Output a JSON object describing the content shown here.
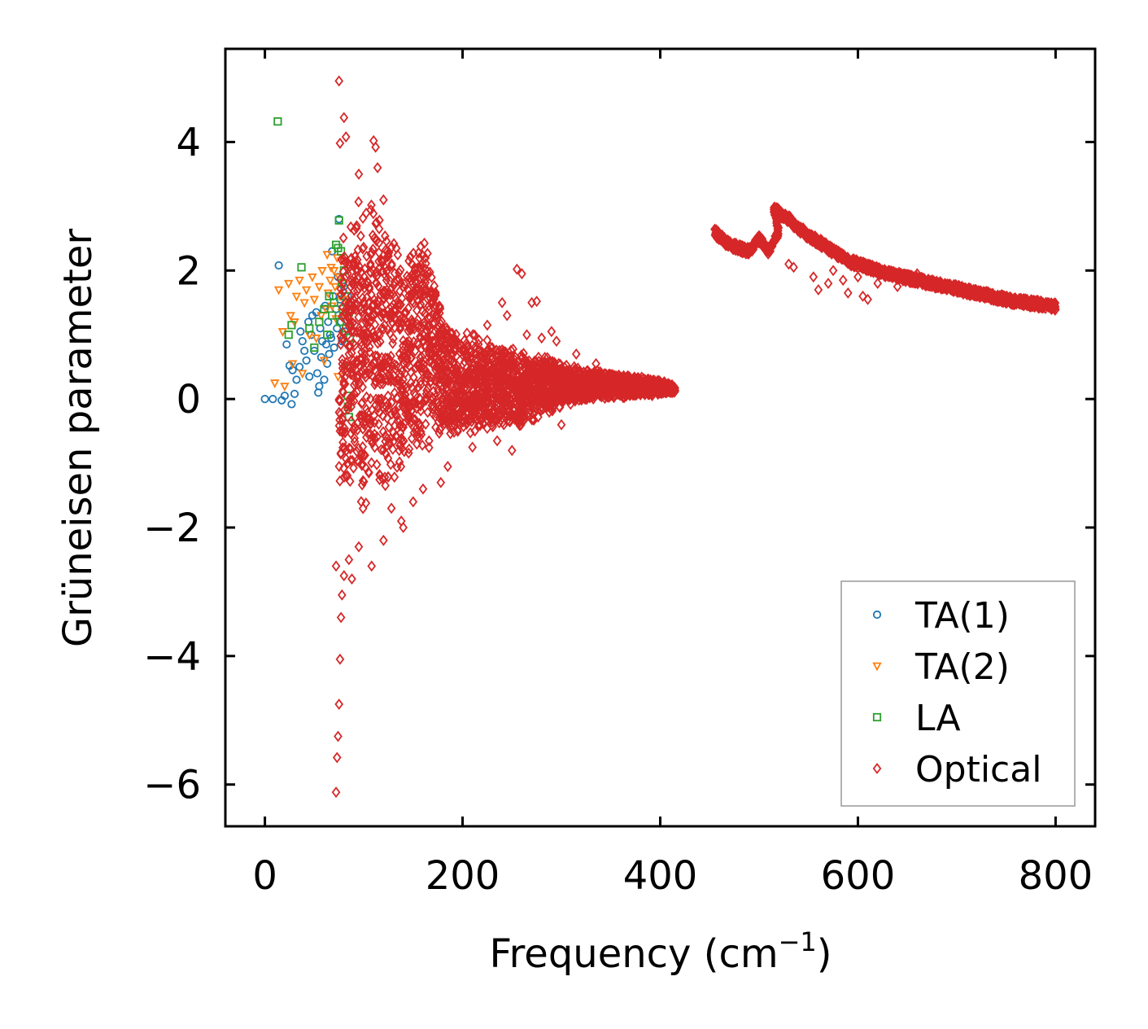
{
  "chart_data": {
    "type": "scatter",
    "title": "",
    "xlabel": "Frequency (cm",
    "xlabel_sup": "−1",
    "xlabel_close": ")",
    "ylabel": "Grüneisen parameter",
    "xlim": [
      -40,
      840
    ],
    "ylim": [
      -6.65,
      5.45
    ],
    "xticks": [
      0,
      200,
      400,
      600,
      800
    ],
    "xtick_labels": [
      "0",
      "200",
      "400",
      "600",
      "800"
    ],
    "yticks": [
      -6,
      -4,
      -2,
      0,
      2,
      4
    ],
    "ytick_labels": [
      "−6",
      "−4",
      "−2",
      "0",
      "2",
      "4"
    ],
    "grid": false,
    "legend_position": "lower-right",
    "series": [
      {
        "name": "TA(1)",
        "marker": "circle",
        "color": "#1f77b4",
        "points": [
          [
            0,
            0
          ],
          [
            8,
            0
          ],
          [
            14,
            2.08
          ],
          [
            17,
            -0.02
          ],
          [
            20,
            0.05
          ],
          [
            22,
            0.85
          ],
          [
            25,
            0.52
          ],
          [
            27,
            -0.08
          ],
          [
            28,
            0.45
          ],
          [
            30,
            0.08
          ],
          [
            32,
            0.3
          ],
          [
            35,
            0.5
          ],
          [
            36,
            1.05
          ],
          [
            38,
            0.9
          ],
          [
            40,
            0.75
          ],
          [
            42,
            0.6
          ],
          [
            44,
            1.2
          ],
          [
            45,
            0.35
          ],
          [
            47,
            1.0
          ],
          [
            48,
            1.3
          ],
          [
            50,
            0.75
          ],
          [
            52,
            1.35
          ],
          [
            53,
            0.4
          ],
          [
            54,
            0.1
          ],
          [
            55,
            0.2
          ],
          [
            56,
            1.1
          ],
          [
            57,
            0.65
          ],
          [
            58,
            0.9
          ],
          [
            60,
            0.3
          ],
          [
            61,
            1.45
          ],
          [
            62,
            0.85
          ],
          [
            63,
            0.55
          ],
          [
            64,
            1.2
          ],
          [
            65,
            0.7
          ],
          [
            66,
            1.0
          ],
          [
            67,
            0.95
          ],
          [
            68,
            2.3
          ],
          [
            69,
            1.6
          ],
          [
            70,
            0.8
          ],
          [
            72,
            1.4
          ],
          [
            73,
            1.1
          ],
          [
            74,
            1.9
          ],
          [
            75,
            2.8
          ],
          [
            76,
            1.55
          ],
          [
            77,
            1.2
          ],
          [
            78,
            0.9
          ],
          [
            79,
            1.3
          ],
          [
            80,
            1.75
          ],
          [
            81,
            1.05
          ],
          [
            82,
            1.5
          ],
          [
            84,
            1.6
          ]
        ]
      },
      {
        "name": "TA(2)",
        "marker": "triangle-down",
        "color": "#ff7f0e",
        "points": [
          [
            10,
            0.25
          ],
          [
            14,
            1.7
          ],
          [
            18,
            1.05
          ],
          [
            20,
            0.2
          ],
          [
            24,
            1.8
          ],
          [
            26,
            1.3
          ],
          [
            28,
            0.55
          ],
          [
            30,
            1.2
          ],
          [
            32,
            1.6
          ],
          [
            35,
            1.85
          ],
          [
            38,
            0.4
          ],
          [
            40,
            1.5
          ],
          [
            42,
            1.7
          ],
          [
            45,
            1.0
          ],
          [
            48,
            1.9
          ],
          [
            50,
            1.55
          ],
          [
            52,
            0.95
          ],
          [
            55,
            1.75
          ],
          [
            57,
            1.3
          ],
          [
            58,
            2.0
          ],
          [
            60,
            0.6
          ],
          [
            62,
            1.4
          ],
          [
            63,
            2.25
          ],
          [
            64,
            1.65
          ],
          [
            66,
            1.85
          ],
          [
            67,
            2.05
          ],
          [
            68,
            1.45
          ],
          [
            70,
            2.0
          ],
          [
            71,
            1.75
          ],
          [
            72,
            1.25
          ],
          [
            73,
            2.2
          ],
          [
            74,
            0.35
          ],
          [
            75,
            1.9
          ],
          [
            76,
            1.6
          ],
          [
            77,
            2.15
          ],
          [
            78,
            1.35
          ],
          [
            80,
            1.8
          ],
          [
            82,
            1.55
          ]
        ]
      },
      {
        "name": "LA",
        "marker": "square",
        "color": "#2ca02c",
        "points": [
          [
            13,
            4.32
          ],
          [
            24,
            1.0
          ],
          [
            27,
            1.15
          ],
          [
            37,
            2.05
          ],
          [
            45,
            1.1
          ],
          [
            50,
            0.8
          ],
          [
            55,
            1.2
          ],
          [
            60,
            1.4
          ],
          [
            63,
            1.0
          ],
          [
            65,
            1.6
          ],
          [
            68,
            1.3
          ],
          [
            70,
            1.5
          ],
          [
            72,
            2.4
          ],
          [
            74,
            2.35
          ],
          [
            75,
            2.78
          ],
          [
            76,
            1.2
          ],
          [
            77,
            2.3
          ],
          [
            78,
            1.8
          ],
          [
            79,
            1.4
          ],
          [
            80,
            2.0
          ],
          [
            81,
            1.6
          ],
          [
            82,
            1.1
          ],
          [
            83,
            0.48
          ],
          [
            84,
            0.05
          ],
          [
            84,
            -0.12
          ],
          [
            85,
            -0.28
          ],
          [
            85,
            1.35
          ],
          [
            86,
            0.95
          ]
        ]
      },
      {
        "name": "Optical",
        "marker": "diamond",
        "color": "#d62728",
        "envelope": [
          [
            75,
            -1.5,
            2.8
          ],
          [
            90,
            -1.8,
            3.3
          ],
          [
            100,
            -1.8,
            3.0
          ],
          [
            110,
            -1.7,
            3.5
          ],
          [
            120,
            -1.6,
            3.0
          ],
          [
            130,
            -1.3,
            2.7
          ],
          [
            140,
            -1.2,
            2.3
          ],
          [
            150,
            -1.0,
            2.5
          ],
          [
            160,
            -0.9,
            2.6
          ],
          [
            170,
            -0.8,
            2.2
          ],
          [
            180,
            -0.7,
            1.3
          ],
          [
            200,
            -0.6,
            1.1
          ],
          [
            220,
            -0.55,
            1.0
          ],
          [
            240,
            -0.5,
            0.9
          ],
          [
            260,
            -0.45,
            0.8
          ],
          [
            280,
            -0.3,
            0.7
          ],
          [
            300,
            -0.15,
            0.6
          ],
          [
            320,
            -0.05,
            0.5
          ],
          [
            340,
            0.0,
            0.45
          ],
          [
            360,
            0.0,
            0.4
          ],
          [
            380,
            0.05,
            0.35
          ],
          [
            400,
            0.05,
            0.3
          ],
          [
            415,
            0.1,
            0.22
          ]
        ],
        "outliers": [
          [
            75,
            4.95
          ],
          [
            80,
            4.38
          ],
          [
            82,
            4.08
          ],
          [
            76,
            3.98
          ],
          [
            110,
            4.02
          ],
          [
            112,
            3.92
          ],
          [
            114,
            3.6
          ],
          [
            95,
            3.5
          ],
          [
            120,
            3.1
          ],
          [
            72,
            -6.12
          ],
          [
            73,
            -5.58
          ],
          [
            74,
            -5.25
          ],
          [
            75,
            -4.75
          ],
          [
            76,
            -4.05
          ],
          [
            77,
            -3.4
          ],
          [
            78,
            -3.05
          ],
          [
            80,
            -2.75
          ],
          [
            85,
            -2.5
          ],
          [
            72,
            -2.6
          ],
          [
            88,
            -2.8
          ],
          [
            95,
            -2.3
          ],
          [
            108,
            -2.6
          ],
          [
            120,
            -2.2
          ],
          [
            140,
            -2.0
          ],
          [
            128,
            -1.7
          ],
          [
            138,
            -1.9
          ],
          [
            150,
            -1.6
          ],
          [
            160,
            -1.4
          ],
          [
            178,
            -1.3
          ],
          [
            185,
            -1.05
          ],
          [
            255,
            2.02
          ],
          [
            260,
            1.95
          ],
          [
            270,
            1.5
          ],
          [
            275,
            1.52
          ],
          [
            240,
            1.5
          ],
          [
            245,
            1.3
          ],
          [
            290,
            1.05
          ],
          [
            295,
            0.9
          ],
          [
            250,
            -0.8
          ],
          [
            300,
            -0.4
          ],
          [
            195,
            0.4
          ],
          [
            205,
            0.7
          ],
          [
            225,
            1.15
          ],
          [
            230,
            0.8
          ],
          [
            265,
            1.0
          ],
          [
            280,
            0.95
          ],
          [
            210,
            -0.75
          ],
          [
            235,
            -0.65
          ],
          [
            315,
            0.7
          ],
          [
            335,
            0.55
          ]
        ],
        "high_branch": [
          [
            455,
            2.6
          ],
          [
            462,
            2.5
          ],
          [
            470,
            2.4
          ],
          [
            480,
            2.35
          ],
          [
            490,
            2.3
          ],
          [
            500,
            2.5
          ],
          [
            510,
            2.3
          ],
          [
            520,
            2.6
          ],
          [
            515,
            2.95
          ],
          [
            530,
            2.8
          ],
          [
            540,
            2.65
          ],
          [
            550,
            2.55
          ],
          [
            560,
            2.45
          ],
          [
            570,
            2.35
          ],
          [
            580,
            2.25
          ],
          [
            590,
            2.15
          ],
          [
            600,
            2.1
          ],
          [
            610,
            2.05
          ],
          [
            620,
            2.0
          ],
          [
            630,
            1.95
          ],
          [
            640,
            1.92
          ],
          [
            650,
            1.88
          ],
          [
            660,
            1.85
          ],
          [
            670,
            1.82
          ],
          [
            680,
            1.78
          ],
          [
            690,
            1.75
          ],
          [
            700,
            1.72
          ],
          [
            710,
            1.68
          ],
          [
            720,
            1.65
          ],
          [
            730,
            1.62
          ],
          [
            740,
            1.58
          ],
          [
            750,
            1.55
          ],
          [
            760,
            1.52
          ],
          [
            770,
            1.5
          ],
          [
            780,
            1.48
          ],
          [
            790,
            1.46
          ],
          [
            800,
            1.44
          ]
        ],
        "high_outliers": [
          [
            530,
            2.1
          ],
          [
            535,
            2.05
          ],
          [
            555,
            1.9
          ],
          [
            560,
            1.7
          ],
          [
            575,
            2.0
          ],
          [
            585,
            1.85
          ],
          [
            600,
            1.9
          ],
          [
            605,
            1.6
          ],
          [
            610,
            1.55
          ],
          [
            620,
            1.8
          ],
          [
            640,
            1.75
          ],
          [
            660,
            1.95
          ],
          [
            590,
            1.65
          ],
          [
            570,
            1.8
          ]
        ]
      }
    ]
  }
}
